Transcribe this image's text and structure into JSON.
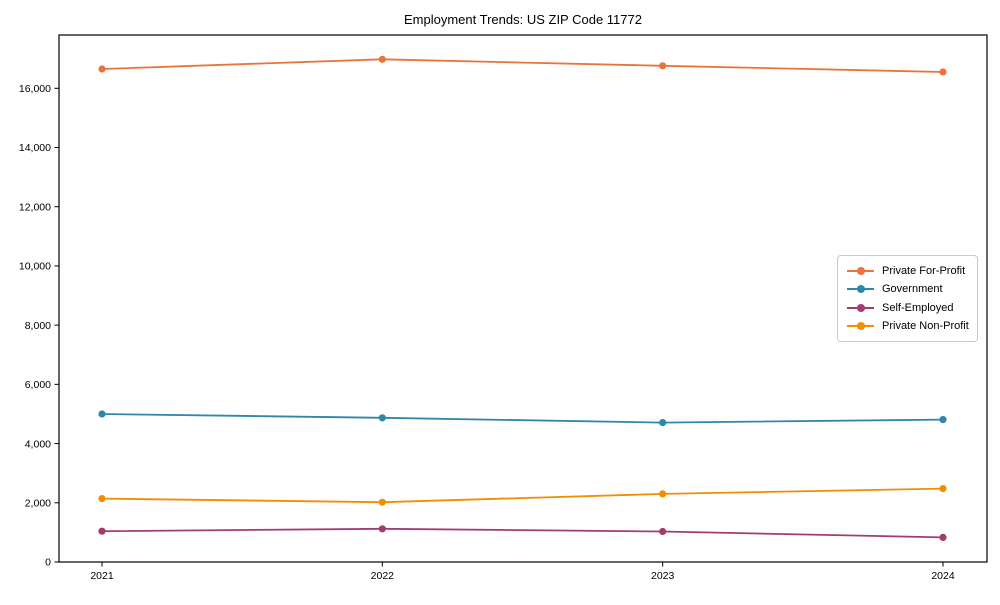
{
  "chart_data": {
    "type": "line",
    "title": "Employment Trends: US ZIP Code 11772",
    "categories": [
      "2021",
      "2022",
      "2023",
      "2024"
    ],
    "series": [
      {
        "name": "Private For-Profit",
        "color": "#E8743B",
        "values": [
          16650,
          16980,
          16760,
          16550
        ]
      },
      {
        "name": "Government",
        "color": "#2E86AB",
        "values": [
          5000,
          4870,
          4710,
          4810
        ]
      },
      {
        "name": "Self-Employed",
        "color": "#A23B72",
        "values": [
          1040,
          1120,
          1030,
          830
        ]
      },
      {
        "name": "Private Non-Profit",
        "color": "#F18F01",
        "values": [
          2140,
          2020,
          2300,
          2480
        ]
      }
    ],
    "xlabel": "",
    "ylabel": "",
    "ylim": [
      0,
      17800
    ],
    "yticks": [
      0,
      2000,
      4000,
      6000,
      8000,
      10000,
      12000,
      14000,
      16000
    ],
    "grid": false,
    "legend_position": "center-right",
    "marker": "circle",
    "line_color_axis": "#000000"
  }
}
